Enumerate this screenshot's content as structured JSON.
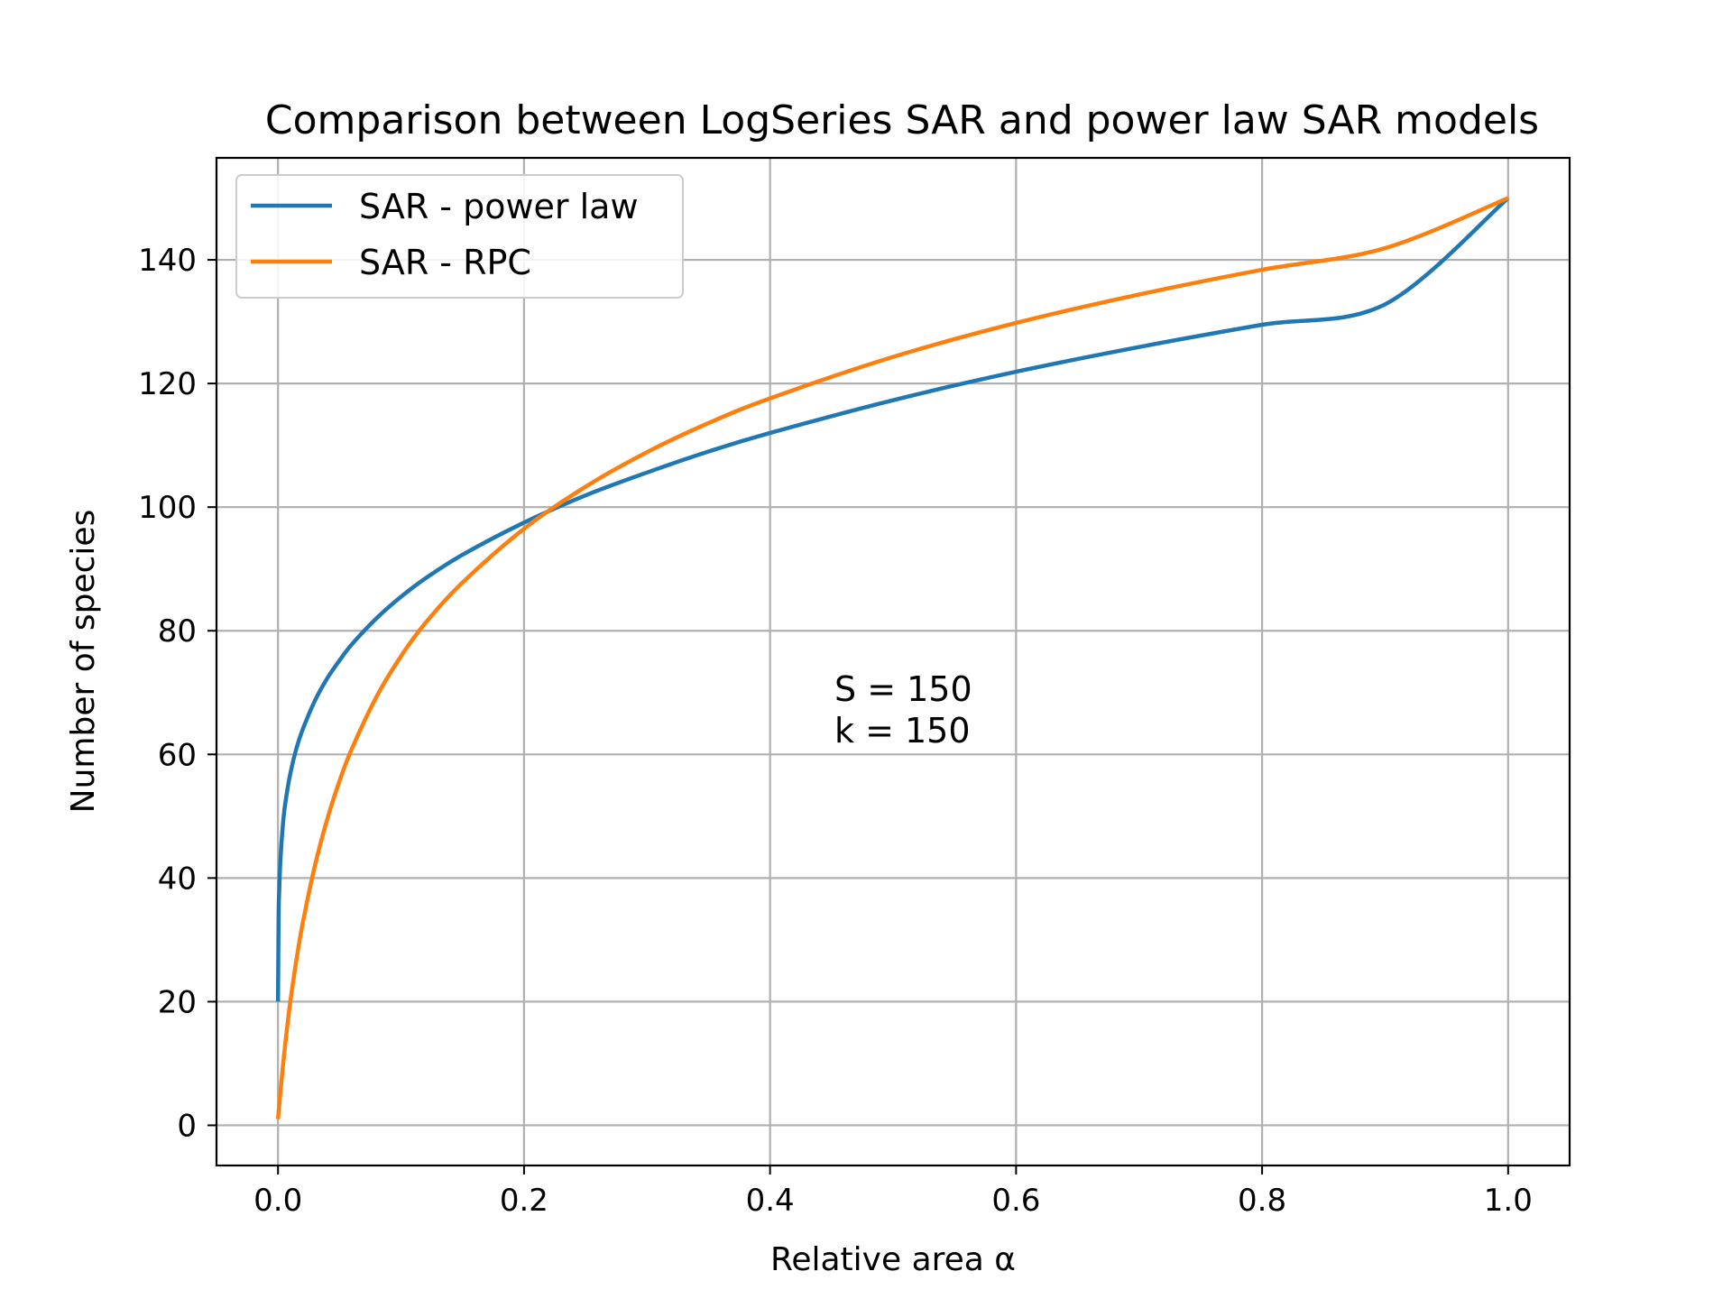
{
  "chart_data": {
    "type": "line",
    "title": "Comparison between LogSeries SAR and power law SAR models",
    "xlabel": "Relative area α",
    "ylabel": "Number of species",
    "xlim": [
      -0.05,
      1.05
    ],
    "ylim": [
      -6.5,
      156.5
    ],
    "xticks": [
      0.0,
      0.2,
      0.4,
      0.6,
      0.8,
      1.0
    ],
    "xtick_labels": [
      "0.0",
      "0.2",
      "0.4",
      "0.6",
      "0.8",
      "1.0"
    ],
    "yticks": [
      0,
      20,
      40,
      60,
      80,
      100,
      120,
      140
    ],
    "ytick_labels": [
      "0",
      "20",
      "40",
      "60",
      "80",
      "100",
      "120",
      "140"
    ],
    "grid": true,
    "legend_position": "top-left",
    "annotation": [
      "S = 150",
      "k = 150"
    ],
    "series": [
      {
        "name": "SAR - power law",
        "color": "#1f77b4",
        "x": [
          0.0,
          0.0005,
          0.001,
          0.002,
          0.004,
          0.006,
          0.01,
          0.015,
          0.02,
          0.03,
          0.04,
          0.05,
          0.06,
          0.08,
          0.1,
          0.12,
          0.15,
          0.2,
          0.25,
          0.3,
          0.35,
          0.4,
          0.5,
          0.6,
          0.7,
          0.8,
          0.9,
          1.0
        ],
        "y": [
          20,
          34,
          38,
          43,
          48.7,
          52.2,
          56.9,
          61,
          64,
          68.7,
          72.3,
          75.2,
          77.8,
          82,
          85.5,
          88.5,
          92.3,
          97.5,
          101.9,
          105.6,
          109,
          112,
          117.3,
          121.9,
          125.9,
          129.5,
          132.8,
          150
        ]
      },
      {
        "name": "SAR - RPC",
        "color": "#ff7f0e",
        "x": [
          0.0,
          0.001,
          0.002,
          0.004,
          0.006,
          0.008,
          0.01,
          0.015,
          0.02,
          0.03,
          0.04,
          0.05,
          0.06,
          0.08,
          0.1,
          0.12,
          0.15,
          0.2,
          0.25,
          0.3,
          0.35,
          0.4,
          0.5,
          0.6,
          0.7,
          0.8,
          0.9,
          1.0
        ],
        "y": [
          1,
          3.2,
          5.5,
          9.6,
          13.4,
          16.8,
          20,
          26.8,
          32.6,
          42,
          49.5,
          55.7,
          60.9,
          69.3,
          75.9,
          81.3,
          87.8,
          96.5,
          103.3,
          108.9,
          113.6,
          117.6,
          124.3,
          129.8,
          134.4,
          138.4,
          141.9,
          150
        ]
      }
    ]
  }
}
